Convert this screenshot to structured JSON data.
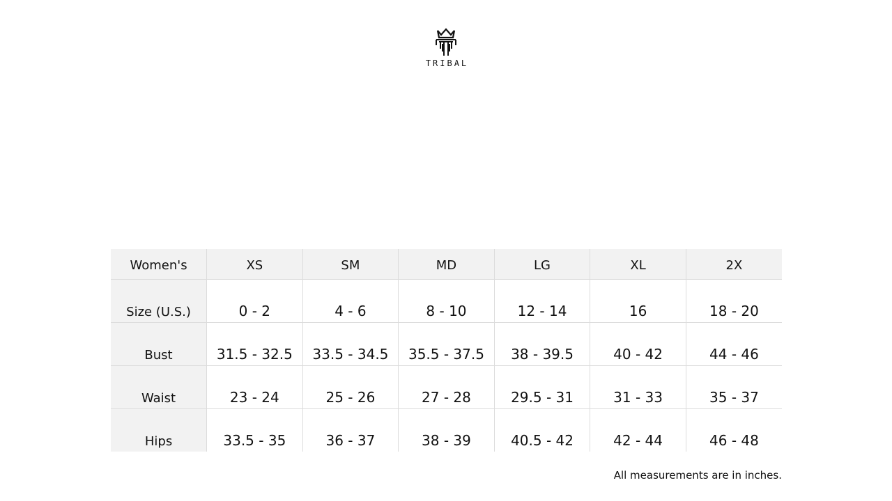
{
  "brand": {
    "name": "TRIBAL",
    "logo_icon": "crown-trident-icon"
  },
  "table": {
    "headers": [
      "Women's",
      "XS",
      "SM",
      "MD",
      "LG",
      "XL",
      "2X"
    ],
    "rows": [
      {
        "label": "Size (U.S.)",
        "values": [
          "0 - 2",
          "4 - 6",
          "8 - 10",
          "12 - 14",
          "16",
          "18 - 20"
        ]
      },
      {
        "label": "Bust",
        "values": [
          "31.5 - 32.5",
          "33.5 - 34.5",
          "35.5 - 37.5",
          "38 - 39.5",
          "40 - 42",
          "44 - 46"
        ]
      },
      {
        "label": "Waist",
        "values": [
          "23 - 24",
          "25 - 26",
          "27 - 28",
          "29.5 - 31",
          "31 - 33",
          "35 - 37"
        ]
      },
      {
        "label": "Hips",
        "values": [
          "33.5 - 35",
          "36 - 37",
          "38 - 39",
          "40.5 - 42",
          "42 - 44",
          "46 - 48"
        ]
      }
    ]
  },
  "note": "All measurements are in inches."
}
